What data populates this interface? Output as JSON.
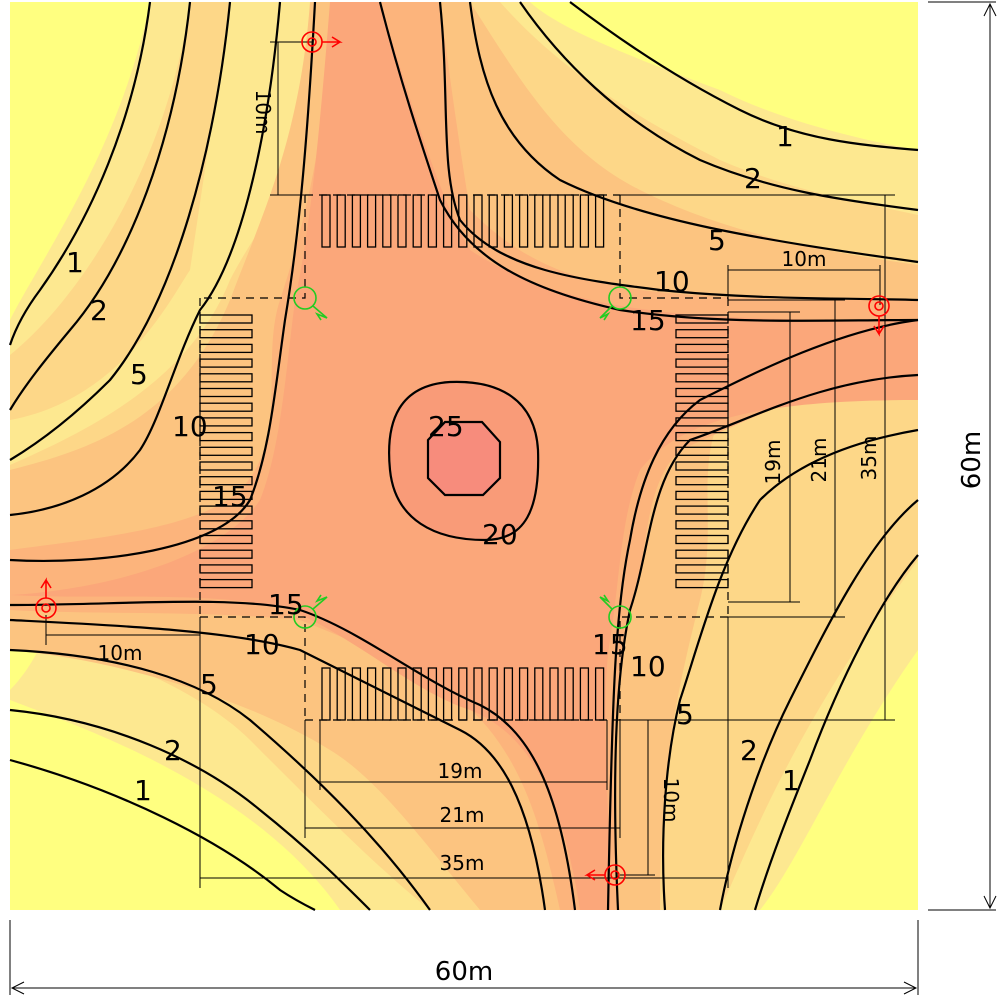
{
  "colors": {
    "level_0_1": "#ffff80",
    "level_1_2": "#fde890",
    "level_2_5": "#fdd788",
    "level_5_10": "#fcc480",
    "level_10_15": "#fcb47c",
    "level_15_20": "#fba77a",
    "level_20_25": "#f99b78",
    "level_25_plus": "#f78c7c",
    "contour_line": "#000000",
    "light_marker": "#ff0000",
    "corner_light_marker": "#22cc22"
  },
  "contour_labels": {
    "nw": [
      "1",
      "2",
      "5",
      "10",
      "15"
    ],
    "ne": [
      "1",
      "2",
      "5",
      "10",
      "15"
    ],
    "sw": [
      "1",
      "2",
      "5",
      "10",
      "15"
    ],
    "se": [
      "1",
      "2",
      "5",
      "10",
      "15"
    ],
    "center": [
      "25",
      "20"
    ]
  },
  "dimensions": {
    "total_width": "60m",
    "total_height": "60m",
    "light_offset_n": "10m",
    "light_offset_e": "10m",
    "light_offset_w": "10m",
    "light_offset_s": "10m",
    "crosswalk_inner": "19m",
    "crosswalk_outer": "21m",
    "overall": "35m"
  },
  "icons": {
    "pole_light": "luminaire-icon",
    "corner_light": "corner-luminaire-icon"
  }
}
